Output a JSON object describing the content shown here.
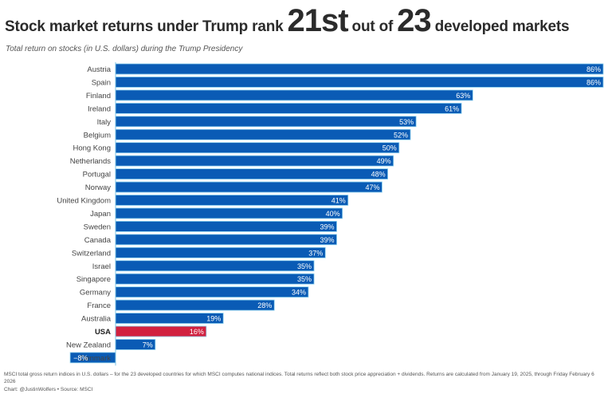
{
  "header": {
    "title_prefix": "Stock market returns under Trump rank",
    "rank": "21st",
    "title_mid": "out of",
    "total": "23",
    "title_suffix": "developed markets",
    "subtitle": "Total return on stocks (in U.S. dollars) during the Trump Presidency"
  },
  "footer": {
    "note": "MSCI total gross return indices in U.S. dollars – for the 23 developed countries for which MSCI computes national indices. Total returns reflect both stock price appreciation + dividends. Returns are calculated from January 19, 2025, through Friday February 6 2026",
    "credit": "Chart: @JustinWolfers • Source: MSCI"
  },
  "colors": {
    "bar": "#0a5bb5",
    "highlight": "#d1213f",
    "label_text": "#ffffff",
    "category_text": "#444444"
  },
  "chart_data": {
    "type": "bar",
    "orientation": "horizontal",
    "title": "Stock market returns under Trump rank 21st out of 23 developed markets",
    "subtitle": "Total return on stocks (in U.S. dollars) during the Trump Presidency",
    "xlabel": "",
    "ylabel": "",
    "unit": "%",
    "xlim": [
      -8,
      86
    ],
    "grid": false,
    "legend": "none",
    "highlight": "USA",
    "categories": [
      "Austria",
      "Spain",
      "Finland",
      "Ireland",
      "Italy",
      "Belgium",
      "Hong Kong",
      "Netherlands",
      "Portugal",
      "Norway",
      "United Kingdom",
      "Japan",
      "Sweden",
      "Canada",
      "Switzerland",
      "Israel",
      "Singapore",
      "Germany",
      "France",
      "Australia",
      "USA",
      "New Zealand",
      "Denmark"
    ],
    "values": [
      86,
      86,
      63,
      61,
      53,
      52,
      50,
      49,
      48,
      47,
      41,
      40,
      39,
      39,
      37,
      35,
      35,
      34,
      28,
      19,
      16,
      7,
      -8
    ],
    "value_labels": [
      "86%",
      "86%",
      "63%",
      "61%",
      "53%",
      "52%",
      "50%",
      "49%",
      "48%",
      "47%",
      "41%",
      "40%",
      "39%",
      "39%",
      "37%",
      "35%",
      "35%",
      "34%",
      "28%",
      "19%",
      "16%",
      "7%",
      "−8%"
    ]
  }
}
